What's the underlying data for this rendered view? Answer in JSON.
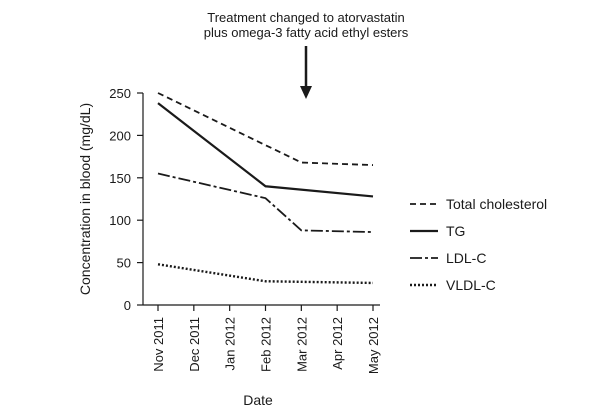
{
  "chart_data": {
    "type": "line",
    "annotation": [
      "Treatment changed to atorvastatin",
      "plus omega-3 fatty acid ethyl esters"
    ],
    "annotation_at": "Mar 2012",
    "xlabel": "Date",
    "ylabel": "Concentration in blood (mg/dL)",
    "categories": [
      "Nov 2011",
      "Dec 2011",
      "Jan 2012",
      "Feb 2012",
      "Mar 2012",
      "Apr 2012",
      "May 2012"
    ],
    "yticks": [
      0,
      50,
      100,
      150,
      200,
      250
    ],
    "ylim": [
      0,
      250
    ],
    "grid": false,
    "legend_position": "right",
    "series": [
      {
        "name": "Total cholesterol",
        "style": "dashed",
        "color": "#1a1a1a",
        "points": [
          {
            "x": "Nov 2011",
            "y": 250
          },
          {
            "x": "Mar 2012",
            "y": 168
          },
          {
            "x": "May 2012",
            "y": 165
          }
        ]
      },
      {
        "name": "TG",
        "style": "solid",
        "color": "#1a1a1a",
        "points": [
          {
            "x": "Nov 2011",
            "y": 238
          },
          {
            "x": "Feb 2012",
            "y": 140
          },
          {
            "x": "May 2012",
            "y": 128
          }
        ]
      },
      {
        "name": "LDL-C",
        "style": "dashdot",
        "color": "#1a1a1a",
        "points": [
          {
            "x": "Nov 2011",
            "y": 155
          },
          {
            "x": "Feb 2012",
            "y": 126
          },
          {
            "x": "Mar 2012",
            "y": 88
          },
          {
            "x": "May 2012",
            "y": 86
          }
        ]
      },
      {
        "name": "VLDL-C",
        "style": "dotted",
        "color": "#1a1a1a",
        "points": [
          {
            "x": "Nov 2011",
            "y": 48
          },
          {
            "x": "Feb 2012",
            "y": 28
          },
          {
            "x": "May 2012",
            "y": 26
          }
        ]
      }
    ]
  }
}
